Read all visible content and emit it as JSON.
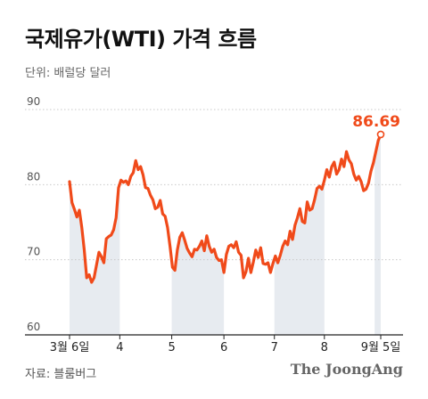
{
  "header": {
    "title": "국제유가(WTI) 가격 흐름",
    "unit": "단위: 배럴당 달러"
  },
  "footer": {
    "source": "자료: 블룸버그",
    "logo": "The JoongAng"
  },
  "colors": {
    "line": "#f04a1a",
    "shade": "#e7ebf0",
    "grid": "#c8c8c8",
    "axis": "#222222"
  },
  "chart_data": {
    "type": "line",
    "title": "국제유가(WTI) 가격 흐름",
    "ylabel": "단위: 배럴당 달러",
    "xlabel": "",
    "ylim": [
      60,
      90
    ],
    "yticks": [
      60,
      70,
      80,
      90
    ],
    "grid": true,
    "x_tick_labels": [
      "3월 6일",
      "4",
      "5",
      "6",
      "7",
      "8",
      "9월 5일"
    ],
    "x_tick_positions": [
      0,
      20.5,
      41.7,
      63,
      83.6,
      104,
      127
    ],
    "shaded_bands": [
      [
        0,
        20.5
      ],
      [
        41.7,
        63
      ],
      [
        83.6,
        104
      ],
      [
        124.5,
        127
      ]
    ],
    "last_value_label": "86.69",
    "series": [
      {
        "x": [
          0,
          1,
          2,
          3,
          4,
          5,
          6,
          7,
          8,
          9,
          10,
          11,
          12,
          13,
          14,
          15,
          16,
          17,
          18,
          19,
          20,
          21,
          22,
          23,
          24,
          25,
          26,
          27,
          28,
          29,
          30,
          31,
          32,
          33,
          34,
          35,
          36,
          37,
          38,
          39,
          40,
          41,
          42,
          43,
          44,
          45,
          46,
          47,
          48,
          49,
          50,
          51,
          52,
          53,
          54,
          55,
          56,
          57,
          58,
          59,
          60,
          61,
          62,
          63,
          64,
          65,
          66,
          67,
          68,
          69,
          70,
          71,
          72,
          73,
          74,
          75,
          76,
          77,
          78,
          79,
          80,
          81,
          82,
          83,
          84,
          85,
          86,
          87,
          88,
          89,
          90,
          91,
          92,
          93,
          94,
          95,
          96,
          97,
          98,
          99,
          100,
          101,
          102,
          103,
          104,
          105,
          106,
          107,
          108,
          109,
          110,
          111,
          112,
          113,
          114,
          115,
          116,
          117,
          118,
          119,
          120,
          121,
          122,
          123,
          124,
          125,
          126,
          127
        ],
        "values": [
          80.4,
          77.6,
          76.7,
          75.7,
          76.6,
          74.3,
          71.3,
          67.6,
          68.0,
          67.0,
          67.6,
          69.3,
          71.0,
          70.4,
          69.6,
          72.8,
          73.1,
          73.3,
          74.0,
          75.6,
          79.6,
          80.6,
          80.3,
          80.5,
          80.0,
          81.1,
          81.6,
          83.2,
          82.0,
          82.4,
          81.3,
          79.6,
          79.5,
          78.6,
          78.0,
          76.8,
          77.0,
          77.9,
          76.1,
          75.8,
          74.3,
          71.8,
          69.0,
          68.6,
          71.3,
          73.0,
          73.6,
          72.6,
          71.5,
          70.9,
          70.4,
          71.4,
          71.3,
          71.8,
          72.5,
          71.2,
          73.2,
          71.8,
          71.0,
          71.4,
          70.3,
          69.9,
          70.0,
          68.3,
          70.7,
          71.8,
          72.0,
          71.6,
          72.4,
          71.0,
          70.6,
          67.6,
          68.4,
          70.2,
          68.3,
          69.7,
          71.3,
          70.3,
          71.6,
          69.5,
          69.4,
          69.6,
          68.3,
          69.5,
          70.5,
          69.6,
          70.6,
          71.8,
          72.5,
          72.0,
          73.8,
          72.7,
          74.6,
          75.6,
          76.8,
          75.1,
          74.9,
          77.7,
          76.6,
          76.8,
          78.0,
          79.5,
          79.8,
          79.4,
          80.6,
          82.0,
          81.0,
          82.4,
          83.0,
          81.4,
          82.0,
          83.4,
          82.4,
          84.4,
          83.3,
          82.8,
          81.4,
          80.6,
          81.1,
          80.4,
          79.2,
          79.4,
          80.2,
          81.8,
          82.9,
          84.4,
          85.9,
          86.69
        ]
      }
    ]
  }
}
